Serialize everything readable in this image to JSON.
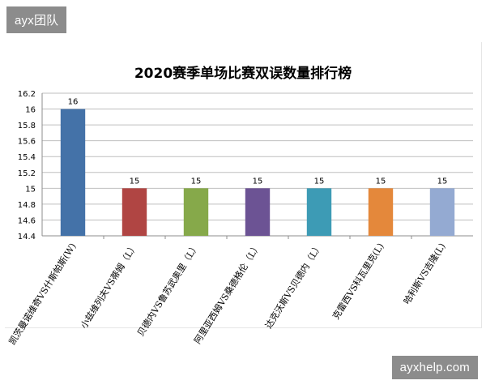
{
  "watermarks": {
    "top_left": "ayx团队",
    "bottom_right": "ayxhelp.com"
  },
  "colors": {
    "grid": "#bfbfbf",
    "axis": "#8c8c8c",
    "text": "#000000",
    "bars": [
      "#4472a8",
      "#b04543",
      "#86a94a",
      "#6c5394",
      "#3d9bb5",
      "#e4883b",
      "#94aad2"
    ]
  },
  "chart_data": {
    "type": "bar",
    "title": "2020赛季单场比赛双误数量排行榜",
    "xlabel": "",
    "ylabel": "",
    "categories": [
      "凯茨曼诺维奇VS什斯帕斯(W)",
      "小兹维列夫VS蒂姆（L）",
      "贝德内VS鲁苏武奥里（L）",
      "阿里亚西姆VS桑德格伦（L）",
      "达克沃斯VS贝德内（L）",
      "克雷西VS科瓦里克(L)",
      "哈利斯VS吉隆(L)"
    ],
    "values": [
      16,
      15,
      15,
      15,
      15,
      15,
      15
    ],
    "data_labels": [
      "16",
      "15",
      "15",
      "15",
      "15",
      "15",
      "15"
    ],
    "ylim": [
      14.4,
      16.2
    ],
    "yticks": [
      "14.4",
      "14.6",
      "14.8",
      "15",
      "15.2",
      "15.4",
      "15.6",
      "15.8",
      "16",
      "16.2"
    ],
    "grid": true,
    "legend": "none"
  }
}
